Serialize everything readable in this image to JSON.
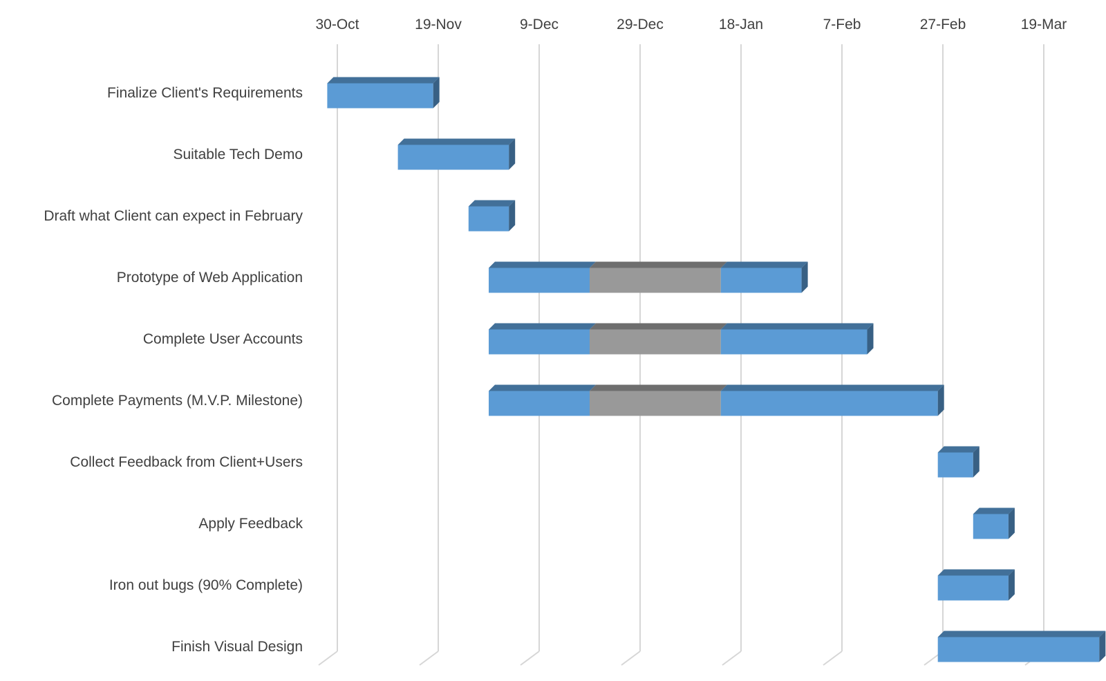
{
  "chart_data": {
    "type": "bar",
    "subtype": "gantt-3d",
    "title": "",
    "xlabel": "",
    "ylabel": "",
    "x_axis": {
      "position": "top",
      "ticks": [
        "30-Oct",
        "19-Nov",
        "9-Dec",
        "29-Dec",
        "18-Jan",
        "7-Feb",
        "27-Feb",
        "19-Mar"
      ],
      "range": [
        "2016-10-27",
        "2017-03-31"
      ]
    },
    "grid": true,
    "legend": "none",
    "colors": {
      "active": "#5b9bd5",
      "break": "#999999"
    },
    "series": [
      {
        "key": "before_break",
        "color": "#5b9bd5"
      },
      {
        "key": "break",
        "color": "#999999"
      },
      {
        "key": "after_break",
        "color": "#5b9bd5"
      }
    ],
    "tasks": [
      {
        "label": "Finalize Client's Requirements",
        "segments": [
          {
            "start": "2016-10-28",
            "end": "2016-11-18",
            "kind": "active"
          }
        ]
      },
      {
        "label": "Suitable Tech Demo",
        "segments": [
          {
            "start": "2016-11-11",
            "end": "2016-12-03",
            "kind": "active"
          }
        ]
      },
      {
        "label": "Draft what Client can expect in February",
        "segments": [
          {
            "start": "2016-11-25",
            "end": "2016-12-03",
            "kind": "active"
          }
        ]
      },
      {
        "label": "Prototype of Web Application",
        "segments": [
          {
            "start": "2016-11-29",
            "end": "2016-12-19",
            "kind": "active"
          },
          {
            "start": "2016-12-19",
            "end": "2017-01-14",
            "kind": "break"
          },
          {
            "start": "2017-01-14",
            "end": "2017-01-30",
            "kind": "active"
          }
        ]
      },
      {
        "label": "Complete User Accounts",
        "segments": [
          {
            "start": "2016-11-29",
            "end": "2016-12-19",
            "kind": "active"
          },
          {
            "start": "2016-12-19",
            "end": "2017-01-14",
            "kind": "break"
          },
          {
            "start": "2017-01-14",
            "end": "2017-02-12",
            "kind": "active"
          }
        ]
      },
      {
        "label": "Complete Payments (M.V.P. Milestone)",
        "segments": [
          {
            "start": "2016-11-29",
            "end": "2016-12-19",
            "kind": "active"
          },
          {
            "start": "2016-12-19",
            "end": "2017-01-14",
            "kind": "break"
          },
          {
            "start": "2017-01-14",
            "end": "2017-02-26",
            "kind": "active"
          }
        ]
      },
      {
        "label": "Collect Feedback from Client+Users",
        "segments": [
          {
            "start": "2017-02-26",
            "end": "2017-03-05",
            "kind": "active"
          }
        ]
      },
      {
        "label": "Apply Feedback",
        "segments": [
          {
            "start": "2017-03-05",
            "end": "2017-03-12",
            "kind": "active"
          }
        ]
      },
      {
        "label": "Iron out bugs (90% Complete)",
        "segments": [
          {
            "start": "2017-02-26",
            "end": "2017-03-12",
            "kind": "active"
          }
        ]
      },
      {
        "label": "Finish Visual Design",
        "segments": [
          {
            "start": "2017-02-26",
            "end": "2017-03-30",
            "kind": "active"
          }
        ]
      }
    ]
  }
}
